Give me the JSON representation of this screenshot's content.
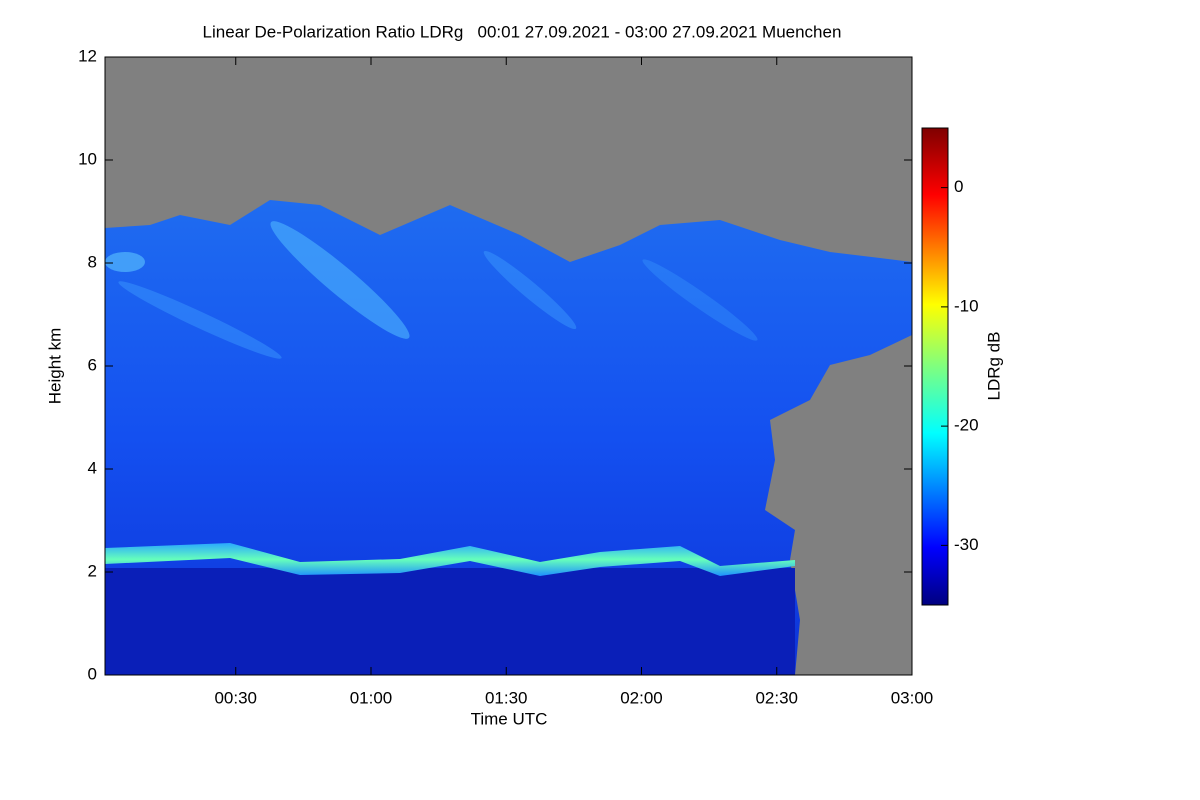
{
  "chart_data": {
    "type": "heatmap",
    "title": "Linear De-Polarization Ratio LDRg   00:01 27.09.2021 - 03:00 27.09.2021 Muenchen",
    "x_label": "Time UTC",
    "y_label": "Height km",
    "xlim": [
      1,
      180
    ],
    "xticks": [
      {
        "value": 30,
        "label": "00:30"
      },
      {
        "value": 60,
        "label": "01:00"
      },
      {
        "value": 90,
        "label": "01:30"
      },
      {
        "value": 120,
        "label": "02:00"
      },
      {
        "value": 150,
        "label": "02:30"
      },
      {
        "value": 180,
        "label": "03:00"
      }
    ],
    "ylim": [
      0,
      12
    ],
    "yticks": [
      0,
      2,
      4,
      6,
      8,
      10,
      12
    ],
    "colorbar": {
      "label": "LDRg dB",
      "lim": [
        -35,
        5
      ],
      "ticks": [
        0,
        -10,
        -20,
        -30
      ]
    }
  }
}
